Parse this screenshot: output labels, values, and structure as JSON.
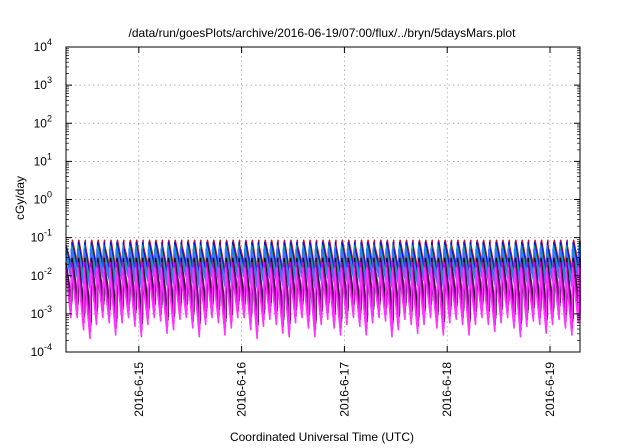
{
  "chart_data": {
    "type": "line",
    "title": "/data/run/goesPlots/archive/2016-06-19/07:00/flux/../bryn/5daysMars.plot",
    "xlabel": "Coordinated Universal Time (UTC)",
    "ylabel": "cGy/day",
    "y_scale": "log",
    "ylim": [
      0.0001,
      10000
    ],
    "y_ticks": [
      {
        "base": "10",
        "exp": "-4",
        "value": 0.0001
      },
      {
        "base": "10",
        "exp": "-3",
        "value": 0.001
      },
      {
        "base": "10",
        "exp": "-2",
        "value": 0.01
      },
      {
        "base": "10",
        "exp": "-1",
        "value": 0.1
      },
      {
        "base": "10",
        "exp": "0",
        "value": 1
      },
      {
        "base": "10",
        "exp": "1",
        "value": 10
      },
      {
        "base": "10",
        "exp": "2",
        "value": 100
      },
      {
        "base": "10",
        "exp": "3",
        "value": 1000
      },
      {
        "base": "10",
        "exp": "4",
        "value": 10000
      }
    ],
    "xlim": [
      "2016-06-14 07:00",
      "2016-06-19 07:00"
    ],
    "x_ticks": [
      {
        "label": "2016-6-15",
        "value": "2016-06-15 00:00"
      },
      {
        "label": "2016-6-16",
        "value": "2016-06-16 00:00"
      },
      {
        "label": "2016-6-17",
        "value": "2016-06-17 00:00"
      },
      {
        "label": "2016-6-18",
        "value": "2016-06-18 00:00"
      },
      {
        "label": "2016-6-19",
        "value": "2016-06-19 00:00"
      }
    ],
    "grid": true,
    "orbit_period_hours": 1.5,
    "series": [
      {
        "color": "#dd1111",
        "peak": 0.085,
        "trough": 0.016
      },
      {
        "color": "#1111cc",
        "peak": 0.075,
        "trough": 0.014
      },
      {
        "color": "#00aaaa",
        "peak": 0.06,
        "trough": 0.011
      },
      {
        "color": "#3377ff",
        "peak": 0.05,
        "trough": 0.009
      },
      {
        "color": "#8833aa",
        "peak": 0.03,
        "trough": 0.0022
      },
      {
        "color": "#111111",
        "peak": 0.028,
        "trough": 0.0018
      },
      {
        "color": "#cc00cc",
        "peak": 0.022,
        "trough": 0.0012
      },
      {
        "color": "#ff33ff",
        "peak": 0.016,
        "trough": 0.0008
      }
    ]
  }
}
